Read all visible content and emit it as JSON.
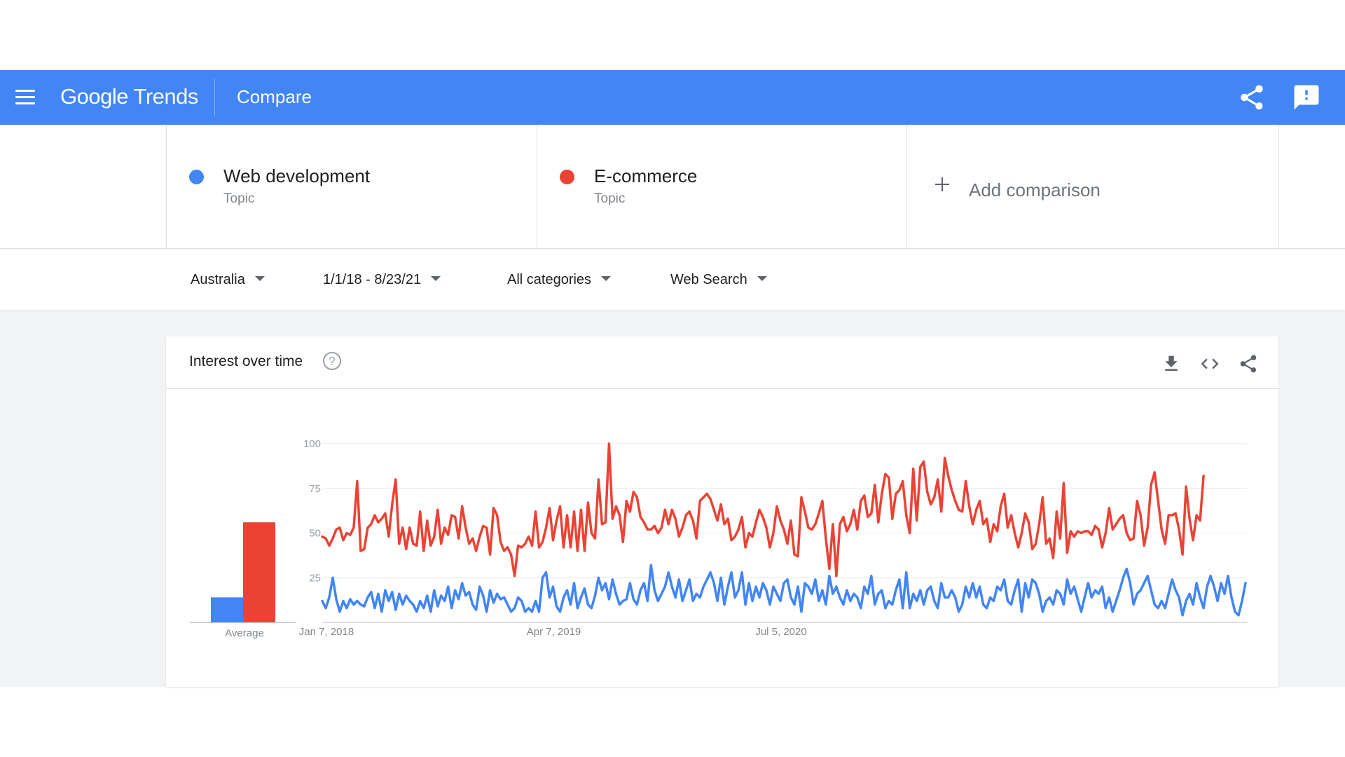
{
  "appbar": {
    "logo_google": "Google",
    "logo_trends": "Trends",
    "page_title": "Compare",
    "icons": {
      "menu": "menu-icon",
      "share": "share-icon",
      "feedback": "feedback-icon"
    },
    "color": "#4285f4"
  },
  "compare": {
    "terms": [
      {
        "name": "Web development",
        "type": "Topic",
        "color": "#4285f4"
      },
      {
        "name": "E-commerce",
        "type": "Topic",
        "color": "#ea4335"
      }
    ],
    "add_label": "Add comparison"
  },
  "filters": {
    "geo": "Australia",
    "date_range": "1/1/18 - 8/23/21",
    "category": "All categories",
    "property": "Web Search"
  },
  "card": {
    "title": "Interest over time",
    "icons": {
      "help": "help-icon",
      "download": "download-icon",
      "embed": "embed-icon",
      "share": "share-icon"
    }
  },
  "chart_data": {
    "type": "line",
    "ylim": [
      0,
      100
    ],
    "yticks": [
      25,
      50,
      75,
      100
    ],
    "xtick_labels": [
      "Jan 7, 2018",
      "Apr 7, 2019",
      "Jul 5, 2020"
    ],
    "xtick_positions": [
      0,
      65,
      130
    ],
    "grid": true,
    "average": {
      "label": "Average",
      "values": [
        14,
        56
      ]
    },
    "series": [
      {
        "name": "Web development",
        "color": "#4285f4",
        "values": [
          12,
          8,
          14,
          25,
          13,
          6,
          12,
          8,
          13,
          10,
          12,
          10,
          9,
          14,
          17,
          8,
          16,
          6,
          18,
          12,
          17,
          7,
          16,
          10,
          15,
          12,
          10,
          6,
          12,
          8,
          15,
          6,
          18,
          9,
          15,
          12,
          20,
          8,
          18,
          13,
          22,
          15,
          17,
          10,
          7,
          20,
          15,
          6,
          18,
          11,
          16,
          13,
          14,
          10,
          6,
          8,
          14,
          12,
          6,
          8,
          6,
          12,
          6,
          25,
          28,
          14,
          20,
          9,
          6,
          14,
          18,
          10,
          22,
          8,
          14,
          19,
          10,
          8,
          15,
          25,
          18,
          22,
          13,
          24,
          16,
          10,
          12,
          13,
          22,
          13,
          10,
          18,
          22,
          12,
          32,
          18,
          12,
          16,
          20,
          28,
          20,
          14,
          24,
          12,
          18,
          24,
          12,
          16,
          14,
          20,
          24,
          28,
          22,
          12,
          25,
          10,
          20,
          28,
          14,
          18,
          28,
          10,
          22,
          12,
          20,
          14,
          22,
          18,
          10,
          20,
          16,
          12,
          22,
          24,
          14,
          10,
          20,
          6,
          22,
          20,
          16,
          24,
          12,
          18,
          10,
          26,
          16,
          20,
          14,
          10,
          18,
          12,
          16,
          14,
          8,
          20,
          16,
          26,
          10,
          16,
          18,
          8,
          12,
          10,
          18,
          24,
          8,
          28,
          8,
          16,
          12,
          18,
          10,
          18,
          20,
          12,
          8,
          22,
          14,
          14,
          18,
          14,
          6,
          10,
          20,
          14,
          22,
          14,
          20,
          10,
          8,
          14,
          12,
          20,
          18,
          24,
          12,
          10,
          18,
          24,
          6,
          22,
          14,
          24,
          22,
          16,
          6,
          12,
          14,
          10,
          18,
          16,
          10,
          24,
          16,
          20,
          13,
          6,
          14,
          22,
          14,
          18,
          16,
          20,
          8,
          14,
          6,
          12,
          18,
          25,
          30,
          22,
          10,
          16,
          18,
          22,
          26,
          18,
          10,
          8,
          12,
          8,
          16,
          24,
          18,
          14,
          4,
          12,
          16,
          10,
          22,
          14,
          8,
          20,
          26,
          20,
          12,
          22,
          16,
          26,
          14,
          6,
          4,
          12,
          22
        ]
      },
      {
        "name": "E-commerce",
        "color": "#ea4335",
        "values": [
          48,
          47,
          43,
          47,
          52,
          53,
          46,
          50,
          49,
          53,
          79,
          40,
          41,
          53,
          55,
          60,
          56,
          58,
          61,
          48,
          66,
          80,
          44,
          53,
          41,
          53,
          44,
          43,
          62,
          40,
          57,
          43,
          48,
          63,
          44,
          53,
          49,
          60,
          59,
          47,
          65,
          53,
          44,
          47,
          40,
          48,
          54,
          53,
          38,
          64,
          60,
          45,
          40,
          42,
          38,
          26,
          43,
          42,
          44,
          48,
          43,
          62,
          42,
          45,
          53,
          64,
          46,
          57,
          65,
          42,
          60,
          42,
          62,
          40,
          63,
          40,
          67,
          50,
          47,
          80,
          55,
          56,
          100,
          58,
          65,
          60,
          45,
          68,
          62,
          73,
          70,
          59,
          56,
          52,
          52,
          54,
          50,
          53,
          63,
          55,
          63,
          58,
          48,
          53,
          60,
          62,
          57,
          47,
          68,
          70,
          72,
          69,
          63,
          57,
          66,
          55,
          58,
          46,
          48,
          52,
          59,
          42,
          50,
          48,
          56,
          63,
          59,
          53,
          42,
          50,
          65,
          57,
          52,
          44,
          57,
          38,
          37,
          70,
          62,
          53,
          52,
          55,
          61,
          68,
          47,
          30,
          55,
          26,
          55,
          59,
          51,
          55,
          63,
          52,
          68,
          71,
          59,
          61,
          77,
          56,
          72,
          83,
          81,
          58,
          72,
          74,
          79,
          60,
          50,
          86,
          57,
          87,
          90,
          73,
          66,
          70,
          80,
          62,
          92,
          82,
          74,
          68,
          63,
          62,
          79,
          65,
          55,
          63,
          68,
          55,
          58,
          45,
          55,
          51,
          65,
          72,
          53,
          60,
          50,
          42,
          50,
          61,
          56,
          41,
          44,
          55,
          70,
          44,
          47,
          36,
          62,
          47,
          78,
          39,
          51,
          48,
          51,
          50,
          51,
          51,
          49,
          54,
          52,
          42,
          50,
          64,
          52,
          55,
          58,
          60,
          50,
          46,
          47,
          68,
          60,
          43,
          53,
          77,
          84,
          68,
          52,
          44,
          60,
          60,
          61,
          52,
          38,
          76,
          58,
          46,
          60,
          57,
          82
        ]
      }
    ]
  }
}
